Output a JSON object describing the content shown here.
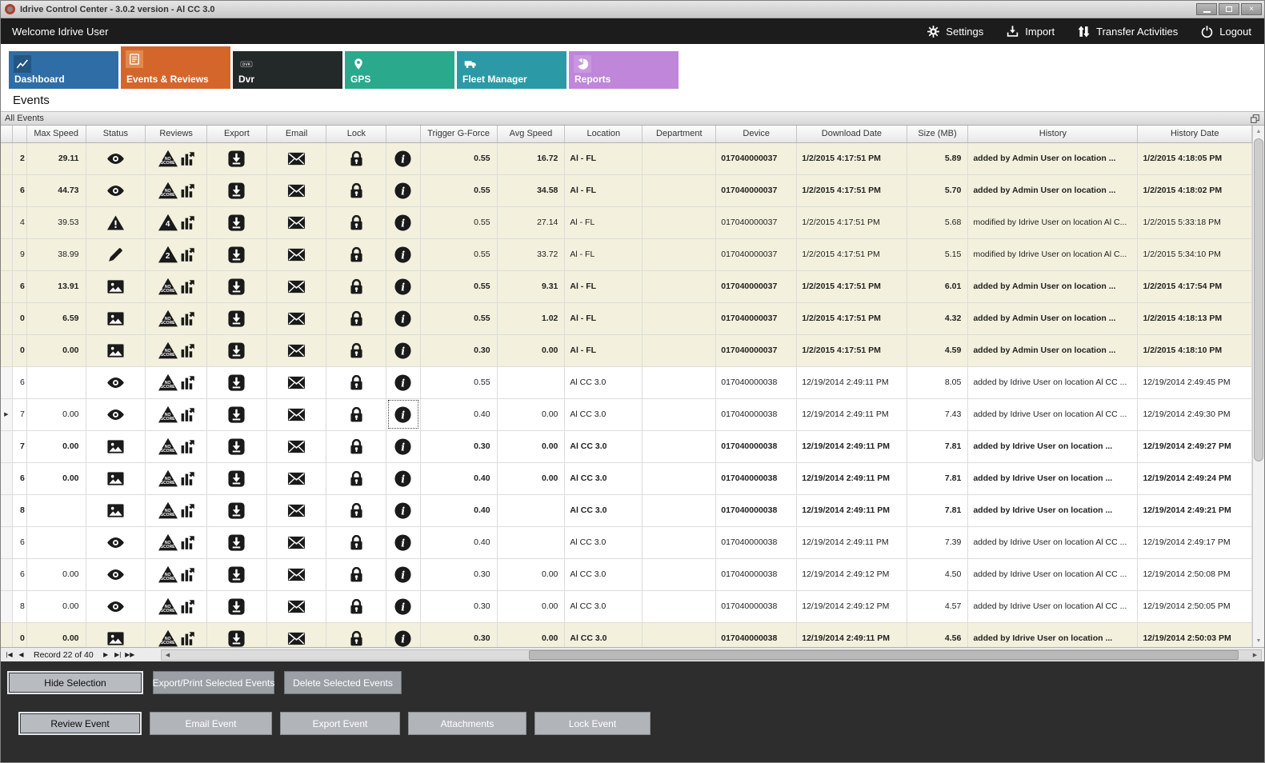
{
  "window": {
    "title": "Idrive Control Center - 3.0.2 version - Al CC 3.0",
    "close_glyph": "×"
  },
  "topbar": {
    "welcome": "Welcome Idrive User",
    "actions": [
      {
        "label": "Settings",
        "icon": "gears-icon"
      },
      {
        "label": "Import",
        "icon": "import-icon"
      },
      {
        "label": "Transfer Activities",
        "icon": "transfer-icon"
      },
      {
        "label": "Logout",
        "icon": "power-icon"
      }
    ]
  },
  "tabs": [
    {
      "label": "Dashboard",
      "color": "#2f6da6",
      "chip": "#235681",
      "icon": "chart-line-icon",
      "selected": false
    },
    {
      "label": "Events & Reviews",
      "color": "#d4662c",
      "chip": "#df8a50",
      "icon": "events-list-icon",
      "selected": true
    },
    {
      "label": "Dvr",
      "color": "#232829",
      "chip": "#232829",
      "icon": "dvr-icon",
      "selected": false
    },
    {
      "label": "GPS",
      "color": "#2aa98c",
      "chip": "#2aa98c",
      "icon": "map-pin-icon",
      "selected": false
    },
    {
      "label": "Fleet Manager",
      "color": "#2b9aa6",
      "chip": "#2b9aa6",
      "icon": "truck-icon",
      "selected": false
    },
    {
      "label": "Reports",
      "color": "#bf86d9",
      "chip": "#c997df",
      "icon": "pie-chart-icon",
      "selected": false
    }
  ],
  "page": {
    "heading": "Events",
    "panel_title": "All Events"
  },
  "table": {
    "columns": [
      "",
      "",
      "Max Speed",
      "Status",
      "Reviews",
      "Export",
      "Email",
      "Lock",
      "",
      "Trigger G-Force",
      "Avg Speed",
      "Location",
      "Department",
      "Device",
      "Download Date",
      "Size (MB)",
      "History",
      "History Date"
    ],
    "rows": [
      {
        "id": "2",
        "max": "29.11",
        "status": "eye",
        "review": "NO SCORE",
        "trigger": "0.55",
        "avg": "16.72",
        "loc": "Al - FL",
        "dept": "",
        "device": "017040000037",
        "ddate": "1/2/2015 4:17:51 PM",
        "size": "5.89",
        "hist": "added by Admin User on location ...",
        "hdate": "1/2/2015 4:18:05 PM",
        "bold": true,
        "beige": true
      },
      {
        "id": "6",
        "max": "44.73",
        "status": "eye",
        "review": "NO SCORE",
        "trigger": "0.55",
        "avg": "34.58",
        "loc": "Al - FL",
        "dept": "",
        "device": "017040000037",
        "ddate": "1/2/2015 4:17:51 PM",
        "size": "5.70",
        "hist": "added by Admin User on location ...",
        "hdate": "1/2/2015 4:18:02 PM",
        "bold": true,
        "beige": true
      },
      {
        "id": "4",
        "max": "39.53",
        "status": "warning",
        "review": "4",
        "trigger": "0.55",
        "avg": "27.14",
        "loc": "Al - FL",
        "dept": "",
        "device": "017040000037",
        "ddate": "1/2/2015 4:17:51 PM",
        "size": "5.68",
        "hist": "modified by Idrive User on location Al C...",
        "hdate": "1/2/2015 5:33:18 PM",
        "bold": false,
        "beige": true
      },
      {
        "id": "9",
        "max": "38.99",
        "status": "pencil",
        "review": "2",
        "trigger": "0.55",
        "avg": "33.72",
        "loc": "Al - FL",
        "dept": "",
        "device": "017040000037",
        "ddate": "1/2/2015 4:17:51 PM",
        "size": "5.15",
        "hist": "modified by Idrive User on location Al C...",
        "hdate": "1/2/2015 5:34:10 PM",
        "bold": false,
        "beige": true
      },
      {
        "id": "6",
        "max": "13.91",
        "status": "image",
        "review": "NO SCORE",
        "trigger": "0.55",
        "avg": "9.31",
        "loc": "Al - FL",
        "dept": "",
        "device": "017040000037",
        "ddate": "1/2/2015 4:17:51 PM",
        "size": "6.01",
        "hist": "added by Admin User on location ...",
        "hdate": "1/2/2015 4:17:54 PM",
        "bold": true,
        "beige": true
      },
      {
        "id": "0",
        "max": "6.59",
        "status": "image",
        "review": "NO SCORE",
        "trigger": "0.55",
        "avg": "1.02",
        "loc": "Al - FL",
        "dept": "",
        "device": "017040000037",
        "ddate": "1/2/2015 4:17:51 PM",
        "size": "4.32",
        "hist": "added by Admin User on location ...",
        "hdate": "1/2/2015 4:18:13 PM",
        "bold": true,
        "beige": true
      },
      {
        "id": "0",
        "max": "0.00",
        "status": "image",
        "review": "NO SCORE",
        "trigger": "0.30",
        "avg": "0.00",
        "loc": "Al - FL",
        "dept": "",
        "device": "017040000037",
        "ddate": "1/2/2015 4:17:51 PM",
        "size": "4.59",
        "hist": "added by Admin User on location ...",
        "hdate": "1/2/2015 4:18:10 PM",
        "bold": true,
        "beige": true
      },
      {
        "id": "6",
        "max": "",
        "status": "eye",
        "review": "NO SCORE",
        "trigger": "0.55",
        "avg": "",
        "loc": "Al CC 3.0",
        "dept": "",
        "device": "017040000038",
        "ddate": "12/19/2014 2:49:11 PM",
        "size": "8.05",
        "hist": "added by Idrive User on location Al CC ...",
        "hdate": "12/19/2014 2:49:45 PM",
        "bold": false,
        "beige": false
      },
      {
        "id": "7",
        "max": "0.00",
        "status": "eye",
        "review": "NO SCORE",
        "trigger": "0.40",
        "avg": "0.00",
        "loc": "Al CC 3.0",
        "dept": "",
        "device": "017040000038",
        "ddate": "12/19/2014 2:49:11 PM",
        "size": "7.43",
        "hist": "added by Idrive User on location Al CC ...",
        "hdate": "12/19/2014 2:49:30 PM",
        "bold": false,
        "beige": false,
        "marker": true,
        "selected": true
      },
      {
        "id": "7",
        "max": "0.00",
        "status": "image",
        "review": "NO SCORE",
        "trigger": "0.30",
        "avg": "0.00",
        "loc": "Al CC 3.0",
        "dept": "",
        "device": "017040000038",
        "ddate": "12/19/2014 2:49:11 PM",
        "size": "7.81",
        "hist": "added by Idrive User on location ...",
        "hdate": "12/19/2014 2:49:27 PM",
        "bold": true,
        "beige": false
      },
      {
        "id": "6",
        "max": "0.00",
        "status": "image",
        "review": "NO SCORE",
        "trigger": "0.40",
        "avg": "0.00",
        "loc": "Al CC 3.0",
        "dept": "",
        "device": "017040000038",
        "ddate": "12/19/2014 2:49:11 PM",
        "size": "7.81",
        "hist": "added by Idrive User on location ...",
        "hdate": "12/19/2014 2:49:24 PM",
        "bold": true,
        "beige": false
      },
      {
        "id": "8",
        "max": "",
        "status": "image",
        "review": "NO SCORE",
        "trigger": "0.40",
        "avg": "",
        "loc": "Al CC 3.0",
        "dept": "",
        "device": "017040000038",
        "ddate": "12/19/2014 2:49:11 PM",
        "size": "7.81",
        "hist": "added by Idrive User on location ...",
        "hdate": "12/19/2014 2:49:21 PM",
        "bold": true,
        "beige": false
      },
      {
        "id": "6",
        "max": "",
        "status": "eye",
        "review": "NO SCORE",
        "trigger": "0.40",
        "avg": "",
        "loc": "Al CC 3.0",
        "dept": "",
        "device": "017040000038",
        "ddate": "12/19/2014 2:49:11 PM",
        "size": "7.39",
        "hist": "added by Idrive User on location Al CC ...",
        "hdate": "12/19/2014 2:49:17 PM",
        "bold": false,
        "beige": false
      },
      {
        "id": "6",
        "max": "0.00",
        "status": "eye",
        "review": "NO SCORE",
        "trigger": "0.30",
        "avg": "0.00",
        "loc": "Al CC 3.0",
        "dept": "",
        "device": "017040000038",
        "ddate": "12/19/2014 2:49:12 PM",
        "size": "4.50",
        "hist": "added by Idrive User on location Al CC ...",
        "hdate": "12/19/2014 2:50:08 PM",
        "bold": false,
        "beige": false
      },
      {
        "id": "8",
        "max": "0.00",
        "status": "eye",
        "review": "NO SCORE",
        "trigger": "0.30",
        "avg": "0.00",
        "loc": "Al CC 3.0",
        "dept": "",
        "device": "017040000038",
        "ddate": "12/19/2014 2:49:12 PM",
        "size": "4.57",
        "hist": "added by Idrive User on location Al CC ...",
        "hdate": "12/19/2014 2:50:05 PM",
        "bold": false,
        "beige": false
      },
      {
        "id": "0",
        "max": "0.00",
        "status": "image",
        "review": "NO SCORE",
        "trigger": "0.30",
        "avg": "0.00",
        "loc": "Al CC 3.0",
        "dept": "",
        "device": "017040000038",
        "ddate": "12/19/2014 2:49:11 PM",
        "size": "4.56",
        "hist": "added by Idrive User on location ...",
        "hdate": "12/19/2014 2:50:03 PM",
        "bold": true,
        "beige": true
      }
    ]
  },
  "pager": {
    "record_text": "Record 22 of 40"
  },
  "footer": {
    "selection_buttons": [
      "Hide Selection",
      "Export/Print Selected Events",
      "Delete Selected  Events"
    ],
    "event_buttons": [
      "Review Event",
      "Email Event",
      "Export Event",
      "Attachments",
      "Lock Event"
    ]
  }
}
